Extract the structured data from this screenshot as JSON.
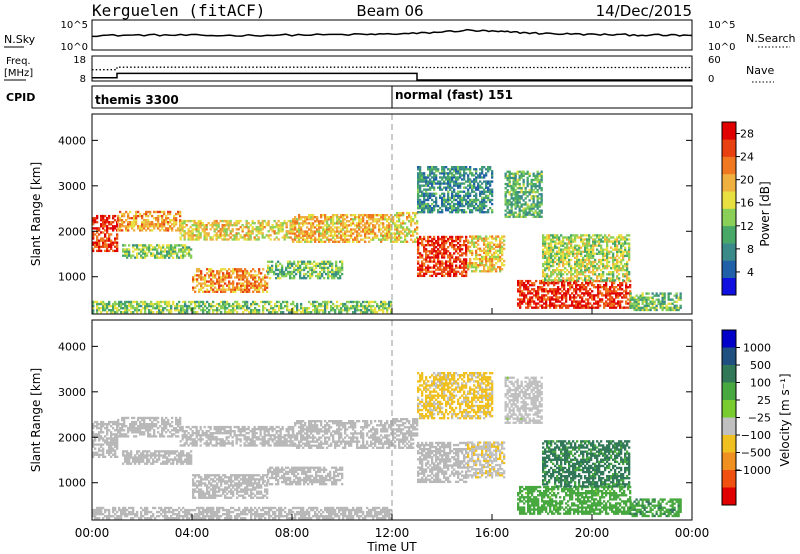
{
  "header": {
    "station": "Kerguelen (fitACF)",
    "beam": "Beam 06",
    "date": "14/Dec/2015"
  },
  "colors": {
    "power_scale": [
      "#1010e0",
      "#2060a8",
      "#3a8a8a",
      "#48a868",
      "#8ad058",
      "#e8e040",
      "#f0b040",
      "#f07820",
      "#e84010",
      "#e00000"
    ],
    "velocity_scale": [
      "#0000c8",
      "#205080",
      "#307858",
      "#48a840",
      "#78cc30",
      "#c0c0c0",
      "#f0c020",
      "#f09020",
      "#f05010",
      "#e00000"
    ],
    "ground_scatter": "#b8b8b8"
  },
  "chart_data": [
    {
      "type": "line",
      "panel": "noise",
      "left_label": "N.Sky",
      "left_ticks": [
        "10^5",
        "10^0"
      ],
      "right_label": "N.Search",
      "right_ticks": [
        "10^5",
        "10^0"
      ],
      "x": [
        "00:00",
        "02:30",
        "05:00",
        "08:00",
        "11:00",
        "13:00",
        "15:00",
        "16:30",
        "18:00",
        "20:00",
        "22:00",
        "24:00"
      ],
      "n_sky": [
        2.4,
        2.5,
        2.4,
        2.5,
        2.6,
        2.8,
        3.4,
        3.1,
        2.8,
        2.6,
        2.5,
        2.4
      ]
    },
    {
      "type": "line",
      "panel": "frequency",
      "left_label": "Freq.",
      "left_unit": "[MHz]",
      "left_ticks": [
        "18",
        "8"
      ],
      "right_label": "Nave",
      "right_ticks": [
        "60",
        "0"
      ],
      "freq_steps": [
        {
          "start": "00:00",
          "end": "01:00",
          "value": 9
        },
        {
          "start": "01:00",
          "end": "13:00",
          "value": 11
        },
        {
          "start": "13:00",
          "end": "24:00",
          "value": 8
        }
      ],
      "nave_steps": [
        {
          "start": "00:00",
          "end": "01:00",
          "value": 28
        },
        {
          "start": "01:00",
          "end": "13:00",
          "value": 35
        },
        {
          "start": "13:00",
          "end": "24:00",
          "value": 34
        }
      ]
    },
    {
      "type": "table",
      "panel": "cpid",
      "label": "CPID",
      "programs": [
        {
          "start": "00:00",
          "name": "themis 3300"
        },
        {
          "start": "12:00",
          "name": "normal (fast) 151"
        }
      ]
    },
    {
      "type": "heatmap",
      "panel": "power",
      "ylabel": "Slant Range [km]",
      "yticks": [
        1000,
        2000,
        3000,
        4000
      ],
      "ylim": [
        180,
        4580
      ],
      "xlim": [
        0,
        24
      ],
      "colorbar_label": "Power [dB]",
      "colorbar_ticks": [
        4,
        8,
        12,
        16,
        20,
        24,
        28
      ],
      "colorbar_range": [
        0,
        30
      ],
      "regions": [
        {
          "t0": 0.0,
          "t1": 1.0,
          "r0": 1550,
          "r1": 2350,
          "p": 26
        },
        {
          "t0": 1.0,
          "t1": 3.5,
          "r0": 2000,
          "r1": 2450,
          "p": 21
        },
        {
          "t0": 3.5,
          "t1": 8.0,
          "r0": 1800,
          "r1": 2250,
          "p": 17
        },
        {
          "t0": 8.0,
          "t1": 12.0,
          "r0": 1750,
          "r1": 2350,
          "p": 19
        },
        {
          "t0": 1.2,
          "t1": 4.0,
          "r0": 1400,
          "r1": 1700,
          "p": 13
        },
        {
          "t0": 4.0,
          "t1": 7.0,
          "r0": 650,
          "r1": 1150,
          "p": 21
        },
        {
          "t0": 7.0,
          "t1": 10.0,
          "r0": 950,
          "r1": 1350,
          "p": 12
        },
        {
          "t0": 12.0,
          "t1": 13.0,
          "r0": 1750,
          "r1": 2400,
          "p": 17
        },
        {
          "t0": 13.0,
          "t1": 15.0,
          "r0": 1000,
          "r1": 1900,
          "p": 26
        },
        {
          "t0": 15.0,
          "t1": 16.5,
          "r0": 1100,
          "r1": 1900,
          "p": 18
        },
        {
          "t0": 13.0,
          "t1": 16.0,
          "r0": 2400,
          "r1": 3400,
          "p": 8
        },
        {
          "t0": 16.5,
          "t1": 18.0,
          "r0": 2300,
          "r1": 3300,
          "p": 11
        },
        {
          "t0": 17.0,
          "t1": 21.5,
          "r0": 300,
          "r1": 900,
          "p": 27
        },
        {
          "t0": 18.0,
          "t1": 21.5,
          "r0": 900,
          "r1": 1900,
          "p": 15
        },
        {
          "t0": 21.5,
          "t1": 23.5,
          "r0": 250,
          "r1": 650,
          "p": 12
        },
        {
          "t0": 0.0,
          "t1": 12.0,
          "r0": 200,
          "r1": 450,
          "p": 13
        }
      ]
    },
    {
      "type": "heatmap",
      "panel": "velocity",
      "ylabel": "Slant Range [km]",
      "yticks": [
        1000,
        2000,
        3000,
        4000
      ],
      "ylim": [
        180,
        4580
      ],
      "xlim": [
        0,
        24
      ],
      "xlabel": "Time UT",
      "xticks": [
        "00:00",
        "04:00",
        "08:00",
        "12:00",
        "16:00",
        "20:00",
        "00:00"
      ],
      "colorbar_label": "Velocity [m s⁻¹]",
      "colorbar_ticks": [
        "1000",
        "500",
        "100",
        "25",
        "−25",
        "−100",
        "−500",
        "−1000"
      ],
      "regions": [
        {
          "t0": 0.0,
          "t1": 1.0,
          "r0": 1550,
          "r1": 2350,
          "v": "gs"
        },
        {
          "t0": 1.0,
          "t1": 3.5,
          "r0": 2000,
          "r1": 2450,
          "v": "gs"
        },
        {
          "t0": 3.5,
          "t1": 8.0,
          "r0": 1800,
          "r1": 2250,
          "v": "gs"
        },
        {
          "t0": 8.0,
          "t1": 12.0,
          "r0": 1750,
          "r1": 2350,
          "v": "gs"
        },
        {
          "t0": 1.2,
          "t1": 4.0,
          "r0": 1400,
          "r1": 1700,
          "v": "gs"
        },
        {
          "t0": 4.0,
          "t1": 7.0,
          "r0": 650,
          "r1": 1150,
          "v": "gs"
        },
        {
          "t0": 7.0,
          "t1": 10.0,
          "r0": 950,
          "r1": 1350,
          "v": "gs"
        },
        {
          "t0": 12.0,
          "t1": 13.0,
          "r0": 1750,
          "r1": 2400,
          "v": "gs"
        },
        {
          "t0": 13.0,
          "t1": 15.0,
          "r0": 1000,
          "r1": 1900,
          "v": "gs"
        },
        {
          "t0": 15.0,
          "t1": 16.5,
          "r0": 1100,
          "r1": 1900,
          "v": -80
        },
        {
          "t0": 13.0,
          "t1": 16.0,
          "r0": 2400,
          "r1": 3400,
          "v": -150
        },
        {
          "t0": 16.5,
          "t1": 18.0,
          "r0": 2300,
          "r1": 3300,
          "v": -60
        },
        {
          "t0": 17.0,
          "t1": 21.5,
          "r0": 300,
          "r1": 900,
          "v": 60
        },
        {
          "t0": 18.0,
          "t1": 21.5,
          "r0": 900,
          "r1": 1900,
          "v": 150
        },
        {
          "t0": 21.5,
          "t1": 23.5,
          "r0": 250,
          "r1": 650,
          "v": 80
        },
        {
          "t0": 0.0,
          "t1": 12.0,
          "r0": 200,
          "r1": 450,
          "v": "gs"
        }
      ]
    }
  ]
}
